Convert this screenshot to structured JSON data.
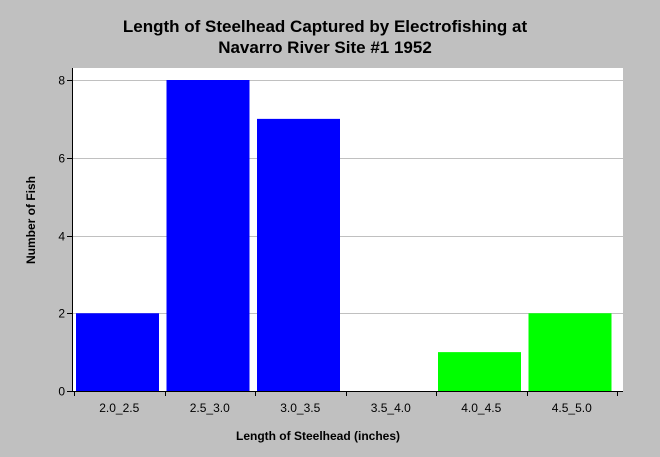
{
  "chart_data": {
    "type": "bar",
    "title_lines": [
      "Length of Steelhead Captured by Electrofishing at",
      "Navarro River Site #1 1952"
    ],
    "xlabel": "Length of Steelhead (inches)",
    "ylabel": "Number of Fish",
    "categories": [
      "2.0_2.5",
      "2.5_3.0",
      "3.0_3.5",
      "3.5_4.0",
      "4.0_4.5",
      "4.5_5.0"
    ],
    "values": [
      2,
      8,
      7,
      0,
      1,
      2
    ],
    "bar_colors": [
      "#0000ff",
      "#0000ff",
      "#0000ff",
      "#0000ff",
      "#00ff00",
      "#00ff00"
    ],
    "ylim": [
      0,
      8
    ],
    "yticks": [
      0,
      2,
      4,
      6,
      8
    ],
    "grid": true,
    "background": "#c0c0c0",
    "plot_background": "#ffffff",
    "grid_color": "#c0c0c0"
  }
}
